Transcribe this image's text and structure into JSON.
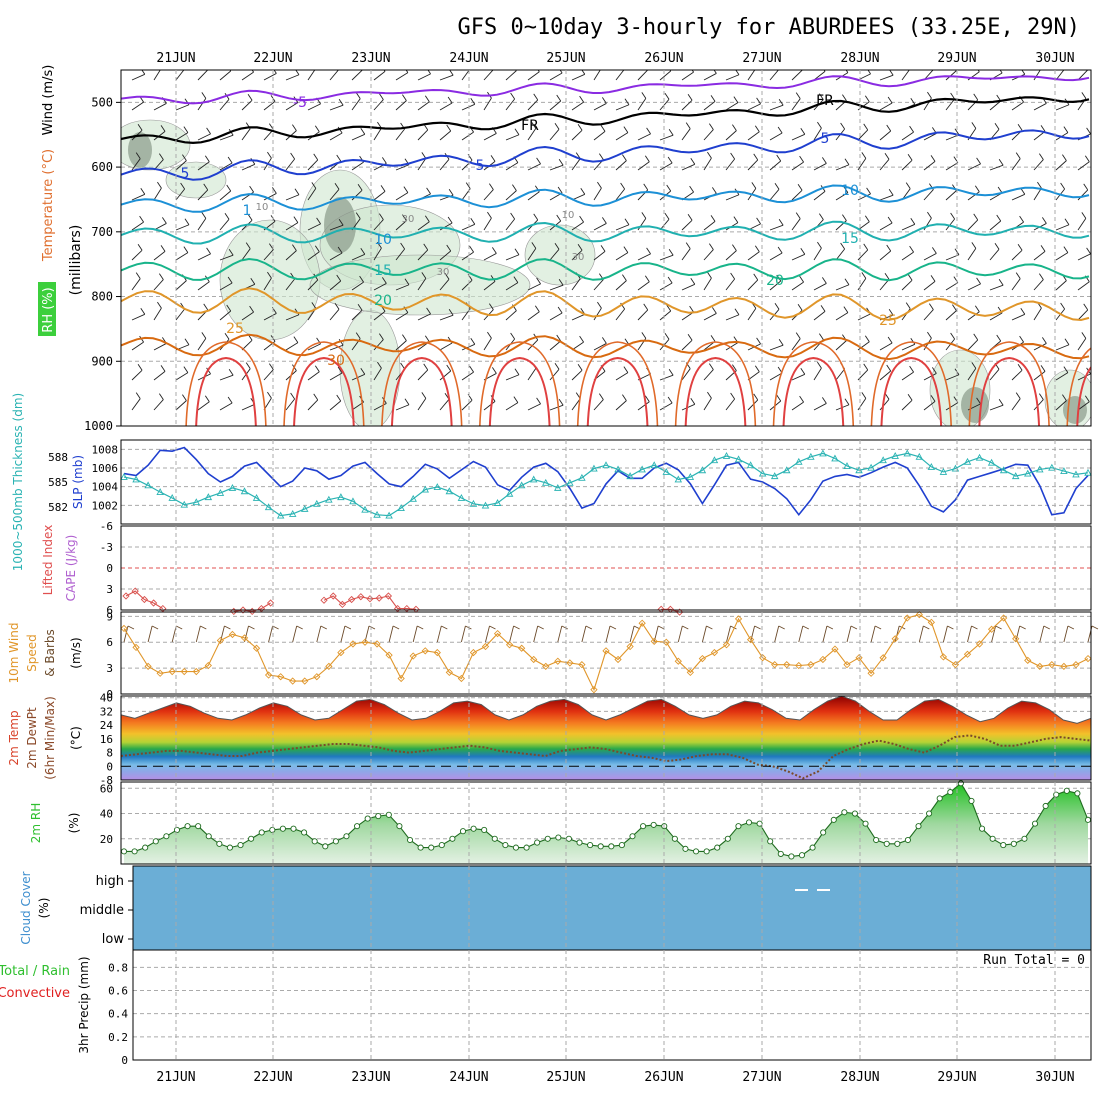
{
  "title": "GFS 0~10day 3-hourly for ABURDEES (33.25E, 29N)",
  "days": [
    "21JUN",
    "22JUN",
    "23JUN",
    "24JUN",
    "25JUN",
    "26JUN",
    "27JUN",
    "28JUN",
    "29JUN",
    "30JUN"
  ],
  "colors": {
    "frame": "#000000",
    "grid": "#aaaaaa",
    "blue": "#1f3fcf",
    "cyan": "#2ab3b3",
    "red": "#d9534f",
    "orange": "#e0962a",
    "green": "#2fbf2f",
    "purple": "#b060d0",
    "cloud": "#6baed6"
  },
  "panels": {
    "profile": {
      "ylabel_wind": "Wind (m/s)",
      "ylabel_temp": "Temperature (°C)",
      "ylabel_rh": "RH (%)",
      "ylabel_mb": "(millibars)",
      "yticks": [
        "500",
        "600",
        "700",
        "800",
        "900",
        "1000"
      ],
      "contour_labels": [
        "-5",
        "FR",
        "FR",
        "5",
        "5",
        "5",
        "10",
        "10",
        "15",
        "15",
        "20",
        "20",
        "25",
        "25",
        "30",
        "10",
        "30",
        "30",
        "10",
        "30",
        "1"
      ]
    },
    "slp": {
      "ylabel_thk": "1000~500mb Thickness (dm)",
      "ylabel_slp": "SLP (mb)",
      "thk_ticks": [
        "588",
        "585",
        "582"
      ],
      "slp_ticks": [
        "1008",
        "1006",
        "1004",
        "1002"
      ]
    },
    "cape": {
      "ylabel_li": "Lifted Index",
      "ylabel_cape": "CAPE (J/kg)",
      "yticks": [
        "-6",
        "-3",
        "0",
        "3",
        "6"
      ]
    },
    "wind10": {
      "ylabel1": "10m Wind",
      "ylabel2": "Speed",
      "ylabel3": "& Barbs",
      "unit": "(m/s)",
      "yticks": [
        "9",
        "6",
        "3",
        "0"
      ]
    },
    "temp2m": {
      "ylabel1": "2m Temp",
      "ylabel2": "2m DewPt",
      "ylabel3": "(6hr Min/Max)",
      "unit": "(°C)",
      "yticks": [
        "40",
        "32",
        "24",
        "16",
        "8",
        "0",
        "-8"
      ]
    },
    "rh2m": {
      "ylabel": "2m RH",
      "unit": "(%)",
      "yticks": [
        "60",
        "40",
        "20"
      ]
    },
    "cloud": {
      "ylabel": "Cloud Cover",
      "unit": "(%)",
      "levels": [
        "high",
        "middle",
        "low"
      ]
    },
    "precip": {
      "ylabel1": "Total / Rain",
      "ylabel2": "Convective",
      "ylabel3": "3hr Precip (mm)",
      "yticks": [
        "0.8",
        "0.6",
        "0.4",
        "0.2",
        "0"
      ],
      "run_total": "Run Total = 0"
    }
  },
  "chart_data": [
    {
      "type": "line",
      "title": "GFS 0~10day 3-hourly for ABURDEES (33.25E, 29N)",
      "name": "SLP (mb)",
      "ylim": [
        1000,
        1009
      ],
      "series": [
        {
          "name": "SLP (mb)",
          "values": [
            1005.4,
            1005.2,
            1006.3,
            1007.9,
            1007.8,
            1008.2,
            1006.9,
            1005.4,
            1004.5,
            1005.1,
            1006.2,
            1006.6,
            1005.3,
            1004.0,
            1004.6,
            1006.0,
            1005.7,
            1004.8,
            1005.2,
            1006.2,
            1006.6,
            1005.4,
            1004.3,
            1004.0,
            1005.1,
            1006.4,
            1005.9,
            1004.9,
            1005.8,
            1006.7,
            1006.1,
            1004.2,
            1003.6,
            1005.0,
            1006.1,
            1006.5,
            1005.6,
            1003.8,
            1001.7,
            1002.2,
            1004.3,
            1005.7,
            1004.9,
            1004.9,
            1006.0,
            1006.5,
            1005.8,
            1004.3,
            1002.2,
            1004.2,
            1006.3,
            1006.6,
            1004.8,
            1004.5,
            1003.8,
            1002.7,
            1001.0,
            1002.6,
            1004.6,
            1005.1,
            1005.3,
            1005.0,
            1005.5,
            1006.1,
            1006.6,
            1006.0,
            1004.1,
            1001.9,
            1001.3,
            1002.6,
            1004.7,
            1005.1,
            1005.5,
            1005.9,
            1006.4,
            1006.3,
            1004.1,
            1001.0,
            1001.2,
            1003.8,
            1005.2
          ]
        }
      ]
    },
    {
      "type": "line",
      "name": "1000~500mb Thickness (dm)",
      "ylim": [
        580,
        590
      ],
      "series": [
        {
          "name": "1000~500mb Thickness (dm)",
          "values": [
            585.6,
            585.3,
            584.6,
            583.8,
            583.1,
            582.3,
            582.6,
            583.2,
            583.7,
            584.3,
            583.9,
            583.1,
            582.0,
            581.0,
            581.2,
            581.8,
            582.4,
            582.9,
            583.2,
            582.7,
            581.7,
            581.1,
            581.0,
            581.9,
            583.0,
            584.1,
            584.4,
            583.9,
            583.1,
            582.4,
            582.2,
            582.5,
            583.6,
            584.6,
            585.3,
            584.9,
            584.3,
            584.9,
            585.5,
            586.6,
            587.0,
            586.5,
            585.7,
            586.5,
            587.0,
            586.2,
            585.3,
            585.6,
            586.4,
            587.6,
            588.1,
            587.7,
            587.0,
            586.0,
            585.7,
            586.4,
            587.4,
            588.0,
            588.4,
            587.8,
            586.9,
            586.4,
            586.7,
            587.6,
            588.1,
            588.4,
            588.0,
            586.8,
            586.2,
            586.6,
            587.4,
            587.9,
            587.3,
            586.4,
            585.7,
            586.0,
            586.5,
            586.7,
            586.3,
            585.9,
            586.1
          ]
        }
      ]
    },
    {
      "type": "line",
      "name": "Lifted Index",
      "ylim": [
        6,
        -6
      ],
      "series": [
        {
          "name": "Lifted Index",
          "values": [
            4.0,
            3.3,
            4.5,
            5.0,
            5.8,
            6.1,
            6.2,
            5.5,
            5.9,
            6.2,
            6.0,
            6.2,
            5.8,
            5.0,
            5.0,
            4.6,
            4.0,
            5.2,
            4.5,
            4.1,
            4.4,
            4.3,
            4.0,
            5.8,
            5.8,
            5.9,
            6.3,
            6.3,
            6.3,
            6.3,
            6.3,
            5.9,
            5.9,
            6.3
          ]
        }
      ]
    },
    {
      "type": "line",
      "name": "10m Wind Speed (m/s)",
      "ylim": [
        0,
        9.5
      ],
      "series": [
        {
          "name": "10m Wind Speed",
          "values": [
            7.6,
            5.4,
            3.2,
            2.4,
            2.6,
            2.6,
            2.6,
            3.3,
            6.2,
            6.9,
            6.5,
            5.3,
            2.2,
            2.0,
            1.5,
            1.5,
            2.0,
            3.2,
            4.8,
            5.8,
            6.0,
            5.8,
            4.5,
            1.8,
            4.4,
            5.0,
            4.8,
            2.5,
            1.8,
            4.8,
            5.5,
            7.0,
            5.7,
            5.3,
            4.0,
            3.2,
            3.8,
            3.6,
            3.4,
            0.5,
            5.0,
            4.0,
            5.5,
            8.2,
            6.1,
            6.0,
            3.8,
            2.5,
            4.1,
            4.8,
            5.7,
            8.7,
            6.3,
            4.2,
            3.4,
            3.4,
            3.3,
            3.4,
            4.0,
            5.2,
            3.4,
            4.2,
            2.4,
            4.2,
            6.4,
            8.8,
            9.2,
            8.3,
            4.3,
            3.4,
            4.6,
            5.8,
            7.5,
            8.8,
            6.4,
            3.9,
            3.2,
            3.4,
            3.2,
            3.4,
            4.1
          ]
        }
      ]
    },
    {
      "type": "area",
      "name": "2m Temp (°C)",
      "ylim": [
        -8,
        41
      ],
      "series": [
        {
          "name": "2m Temp",
          "values": [
            30,
            28,
            31,
            34,
            37,
            35,
            31,
            28,
            27,
            30,
            34,
            37,
            35,
            30,
            27,
            28,
            33,
            38,
            39,
            36,
            31,
            27,
            28,
            32,
            37,
            38,
            36,
            30,
            27,
            30,
            35,
            38,
            39,
            36,
            30,
            27,
            30,
            34,
            38,
            39,
            35,
            30,
            28,
            30,
            35,
            38,
            37,
            33,
            28,
            27,
            33,
            38,
            41,
            38,
            32,
            27,
            27,
            33,
            38,
            39,
            35,
            30,
            26,
            28,
            34,
            38,
            37,
            33,
            27,
            25,
            28
          ]
        },
        {
          "name": "2m DewPt",
          "values": [
            6,
            7,
            8,
            9,
            9,
            8,
            7,
            6,
            6,
            8,
            9,
            10,
            11,
            12,
            13,
            13,
            12,
            11,
            9,
            8,
            9,
            10,
            11,
            12,
            11,
            9,
            8,
            7,
            6,
            9,
            10,
            11,
            10,
            8,
            6,
            5,
            3,
            4,
            6,
            7,
            7,
            5,
            1,
            0,
            -3,
            -7,
            -3,
            6,
            10,
            13,
            15,
            13,
            10,
            8,
            12,
            17,
            18,
            16,
            12,
            12,
            14,
            16,
            17,
            16,
            15
          ]
        }
      ]
    },
    {
      "type": "area",
      "name": "2m RH (%)",
      "ylim": [
        0,
        65
      ],
      "series": [
        {
          "name": "2m RH",
          "values": [
            10,
            10,
            13,
            18,
            22,
            27,
            30,
            30,
            22,
            16,
            13,
            15,
            20,
            25,
            27,
            28,
            28,
            25,
            18,
            14,
            18,
            22,
            30,
            36,
            38,
            39,
            30,
            19,
            13,
            13,
            15,
            20,
            26,
            28,
            27,
            20,
            15,
            13,
            13,
            17,
            20,
            21,
            20,
            17,
            15,
            14,
            14,
            15,
            22,
            30,
            31,
            30,
            20,
            12,
            10,
            10,
            13,
            20,
            30,
            33,
            32,
            18,
            8,
            6,
            7,
            13,
            25,
            35,
            41,
            40,
            32,
            19,
            16,
            16,
            19,
            30,
            40,
            52,
            57,
            64,
            50,
            28,
            20,
            15,
            16,
            20,
            32,
            46,
            55,
            58,
            56,
            35
          ]
        }
      ]
    },
    {
      "type": "bar",
      "name": "Cloud Cover (%)",
      "categories": [
        "high",
        "middle",
        "low"
      ],
      "values": [
        0,
        0,
        0
      ]
    },
    {
      "type": "bar",
      "name": "3hr Precip (mm)",
      "ylim": [
        0,
        0.95
      ],
      "values": [
        0
      ]
    }
  ]
}
